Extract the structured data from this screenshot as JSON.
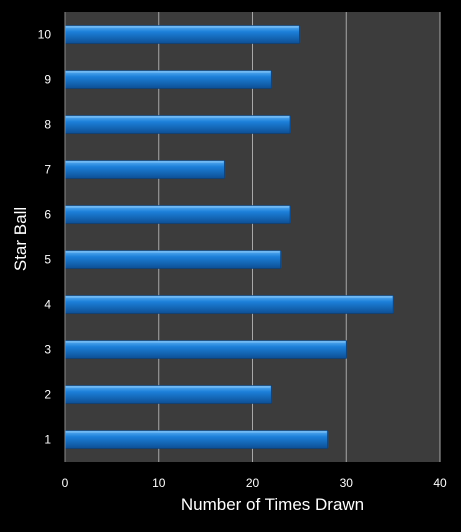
{
  "chart_data": {
    "type": "bar",
    "orientation": "horizontal",
    "categories": [
      "1",
      "2",
      "3",
      "4",
      "5",
      "6",
      "7",
      "8",
      "9",
      "10"
    ],
    "values": [
      28,
      22,
      30,
      35,
      23,
      24,
      17,
      24,
      22,
      25
    ],
    "title": "",
    "xlabel": "Number of Times Drawn",
    "ylabel": "Star Ball",
    "xlim": [
      0,
      40
    ],
    "xticks": [
      "0",
      "10",
      "20",
      "30",
      "40"
    ],
    "grid": "vertical",
    "legend": "none"
  },
  "colors": {
    "background": "#000000",
    "plot_area": "#3c3c3c",
    "bar": "#1c7fd9",
    "bar_highlight": "#5fb3f5",
    "bar_shadow": "#0d4f94",
    "grid": "#a8a8a8",
    "text": "#ffffff"
  }
}
